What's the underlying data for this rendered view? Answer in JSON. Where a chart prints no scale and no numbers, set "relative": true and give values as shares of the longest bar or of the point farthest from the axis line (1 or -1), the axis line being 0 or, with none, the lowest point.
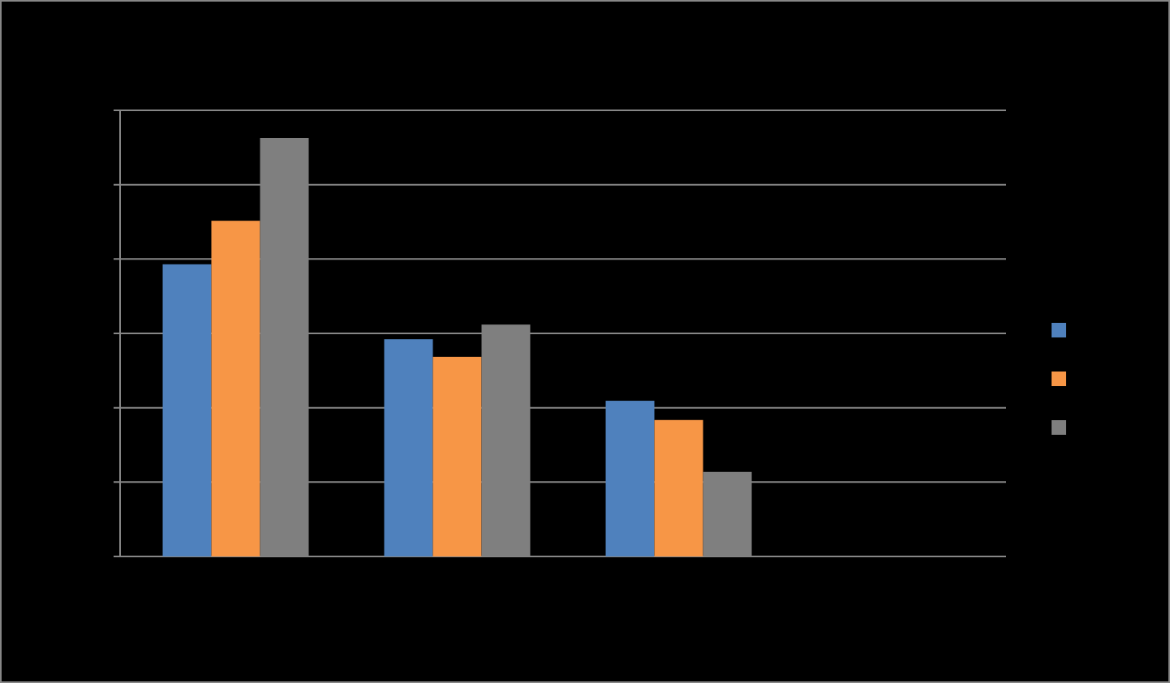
{
  "chart_data": {
    "type": "bar",
    "relative": true,
    "categories": [
      null,
      null,
      null
    ],
    "series": [
      {
        "color": "#4f81bd",
        "values": [
          0.698,
          0.519,
          0.372
        ]
      },
      {
        "color": "#f79646",
        "values": [
          0.802,
          0.477,
          0.326
        ]
      },
      {
        "color": "#7f7f7f",
        "values": [
          1,
          0.554,
          0.202
        ]
      }
    ],
    "grid": true
  }
}
